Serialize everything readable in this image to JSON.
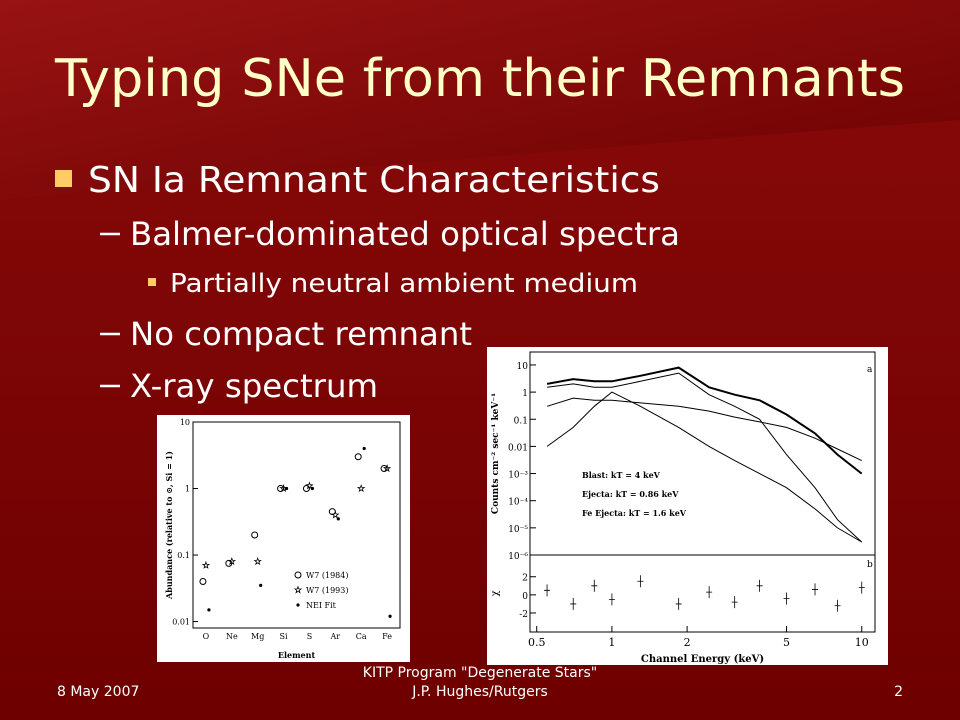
{
  "slide": {
    "title": "Typing SNe from their Remnants",
    "bullets": [
      {
        "level": 1,
        "text": "SN Ia Remnant Characteristics"
      },
      {
        "level": 2,
        "text": "Balmer-dominated optical spectra"
      },
      {
        "level": 3,
        "text": "Partially neutral ambient medium"
      },
      {
        "level": 2,
        "text": "No compact remnant"
      },
      {
        "level": 2,
        "text": "X-ray spectrum"
      }
    ],
    "footer": {
      "date": "8 May 2007",
      "center": [
        "KITP Program \"Degenerate Stars\"",
        "J.P. Hughes/Rutgers"
      ],
      "page": "2"
    }
  },
  "chart_data": [
    {
      "type": "scatter",
      "log_y": true,
      "xlabel": "Element",
      "ylabel": "Abundance (relative to ⊙, Si = 1)",
      "categories": [
        "O",
        "Ne",
        "Mg",
        "Si",
        "S",
        "Ar",
        "Ca",
        "Fe"
      ],
      "ylim": [
        0.008,
        10
      ],
      "yticks": [
        10,
        1,
        0.1,
        0.01
      ],
      "legend": "lower right",
      "series": [
        {
          "name": "W7 (1984)",
          "marker": "circle",
          "color": "#000000",
          "values": [
            0.04,
            0.075,
            0.2,
            1,
            1,
            0.45,
            3,
            2
          ]
        },
        {
          "name": "W7 (1993)",
          "marker": "star",
          "color": "#000000",
          "values": [
            0.07,
            0.08,
            0.08,
            1,
            1.1,
            0.4,
            1,
            2
          ]
        },
        {
          "name": "NEI Fit",
          "marker": "dot",
          "color": "#000000",
          "values": [
            0.015,
            null,
            0.035,
            1,
            1,
            0.35,
            4,
            0.012
          ]
        }
      ]
    },
    {
      "type": "line",
      "log_x": true,
      "log_y": true,
      "xlabel": "Channel Energy (keV)",
      "ylabel": "Counts cm⁻² sec⁻¹ keV⁻¹",
      "panel_label": "a",
      "xlim": [
        0.47,
        11.3
      ],
      "xticks": [
        0.5,
        1,
        2,
        5,
        10
      ],
      "ylim": [
        1e-06,
        30
      ],
      "yticks": [
        10,
        1,
        0.1,
        0.01,
        {
          "value": 0.001,
          "label": "10⁻³"
        },
        {
          "value": 0.0001,
          "label": "10⁻⁴"
        },
        {
          "value": 1e-05,
          "label": "10⁻⁵"
        },
        {
          "value": 1e-06,
          "label": "10⁻⁶"
        }
      ],
      "x": [
        0.55,
        0.7,
        0.85,
        1.0,
        1.3,
        1.85,
        2.45,
        3.1,
        3.9,
        5,
        6.5,
        8,
        10
      ],
      "series": [
        {
          "color": "#000000",
          "values": [
            2,
            3,
            2.5,
            2.5,
            4,
            8,
            1.5,
            0.8,
            0.5,
            0.15,
            0.03,
            0.005,
            0.001
          ]
        },
        {
          "name": "Blast: kT = 4 keV",
          "color": "#000000",
          "values": [
            0.3,
            0.6,
            0.5,
            0.5,
            0.4,
            0.3,
            0.2,
            0.12,
            0.08,
            0.05,
            0.02,
            0.008,
            0.003
          ]
        },
        {
          "name": "Ejecta: kT = 0.86 keV",
          "color": "#000000",
          "values": [
            1.5,
            2,
            1.5,
            1.5,
            2.5,
            5,
            0.8,
            0.3,
            0.1,
            0.005,
            0.0003,
            2e-05,
            3e-06
          ]
        },
        {
          "name": "Fe Ejecta: kT = 1.6 keV",
          "color": "#000000",
          "values": [
            0.01,
            0.05,
            0.3,
            1,
            0.3,
            0.05,
            0.01,
            0.003,
            0.001,
            0.0003,
            5e-05,
            1e-05,
            3e-06
          ]
        }
      ],
      "residuals": {
        "ylabel": "χ",
        "panel_label": "b",
        "ylim": [
          -4.1,
          4.4
        ],
        "yticks": [
          -2,
          0,
          2
        ],
        "values": [
          0.5,
          -1,
          1,
          -0.5,
          1.5,
          -1,
          0.3,
          -0.8,
          1,
          -0.4,
          0.6,
          -1.2,
          0.8
        ]
      }
    }
  ]
}
